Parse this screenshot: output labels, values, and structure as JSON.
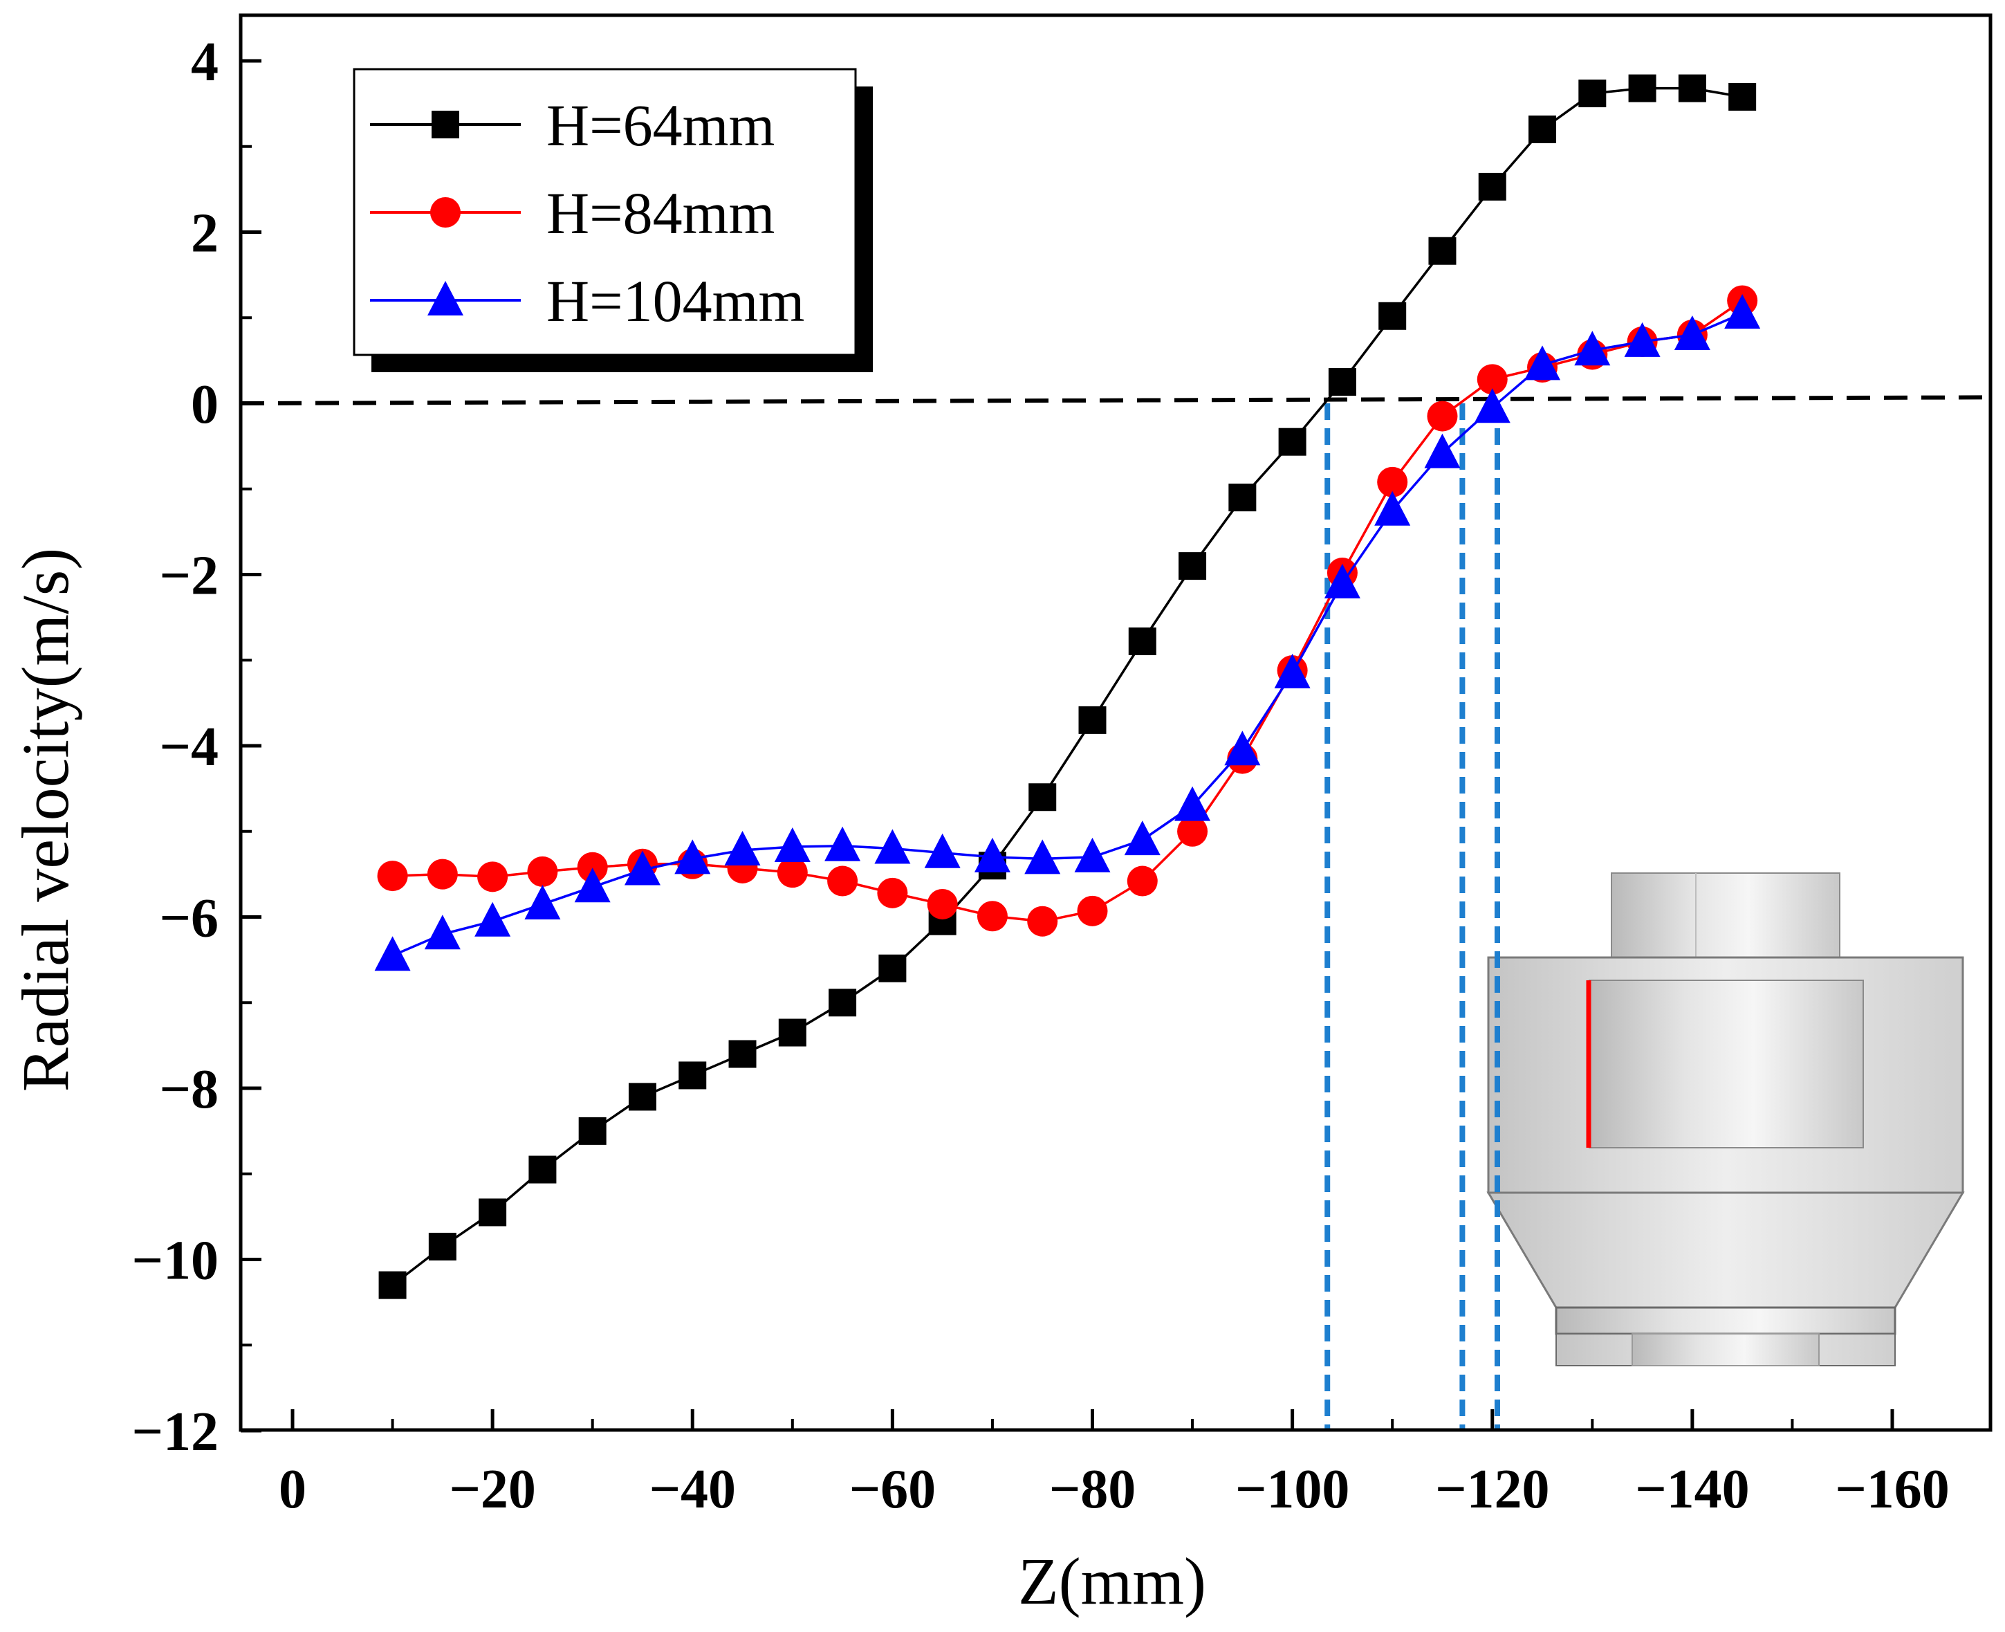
{
  "chart_data": {
    "type": "line",
    "title": "",
    "xlabel": "Z(mm)",
    "ylabel": "Radial velocity(m/s)",
    "xlim": [
      5,
      -170
    ],
    "ylim": [
      -12,
      5
    ],
    "x_reversed": true,
    "xticks": [
      0,
      -20,
      -40,
      -60,
      -80,
      -100,
      -120,
      -140,
      -160
    ],
    "xtick_labels": [
      "0",
      "−20",
      "−40",
      "−60",
      "−80",
      "−100",
      "−120",
      "−140",
      "−160"
    ],
    "yticks": [
      4,
      2,
      0,
      -2,
      -4,
      -6,
      -8,
      -10,
      -12
    ],
    "ytick_labels": [
      "4",
      "2",
      "0",
      "−2",
      "−4",
      "−6",
      "−8",
      "−10",
      "−12"
    ],
    "legend_position": "top-left",
    "x": [
      -10,
      -15,
      -20,
      -25,
      -30,
      -35,
      -40,
      -45,
      -50,
      -55,
      -60,
      -65,
      -70,
      -75,
      -80,
      -85,
      -90,
      -95,
      -100,
      -105,
      -110,
      -115,
      -120,
      -125,
      -130,
      -135,
      -140,
      -145
    ],
    "series": [
      {
        "name": "H=64mm",
        "color": "#000000",
        "marker": "square",
        "values": [
          -10.3,
          -9.85,
          -9.45,
          -8.95,
          -8.5,
          -8.1,
          -7.85,
          -7.6,
          -7.35,
          -7.0,
          -6.6,
          -6.05,
          -5.4,
          -4.6,
          -3.7,
          -2.78,
          -1.9,
          -1.1,
          -0.45,
          0.25,
          1.02,
          1.78,
          2.53,
          3.2,
          3.62,
          3.68,
          3.68,
          3.58
        ]
      },
      {
        "name": "H=84mm",
        "color": "#ff0000",
        "marker": "circle",
        "values": [
          -5.52,
          -5.5,
          -5.53,
          -5.47,
          -5.42,
          -5.38,
          -5.38,
          -5.43,
          -5.48,
          -5.58,
          -5.72,
          -5.85,
          -5.99,
          -6.05,
          -5.93,
          -5.58,
          -5.0,
          -4.15,
          -3.12,
          -1.98,
          -0.92,
          -0.15,
          0.28,
          0.42,
          0.57,
          0.72,
          0.8,
          1.2
        ]
      },
      {
        "name": "H=104mm",
        "color": "#0000ff",
        "marker": "triangle",
        "values": [
          -6.45,
          -6.2,
          -6.05,
          -5.85,
          -5.65,
          -5.45,
          -5.32,
          -5.22,
          -5.18,
          -5.17,
          -5.2,
          -5.25,
          -5.3,
          -5.32,
          -5.3,
          -5.1,
          -4.7,
          -4.05,
          -3.15,
          -2.1,
          -1.25,
          -0.58,
          -0.05,
          0.45,
          0.62,
          0.72,
          0.8,
          1.05
        ]
      }
    ],
    "reference_line": {
      "y_start": 0,
      "y_end": 0.07,
      "style": "dashed",
      "color": "#000000"
    },
    "vertical_markers": [
      {
        "x": -103.5,
        "color": "#1e7fcf",
        "style": "dashed"
      },
      {
        "x": -117,
        "color": "#1e7fcf",
        "style": "dashed"
      },
      {
        "x": -120.5,
        "color": "#1e7fcf",
        "style": "dashed"
      }
    ]
  }
}
